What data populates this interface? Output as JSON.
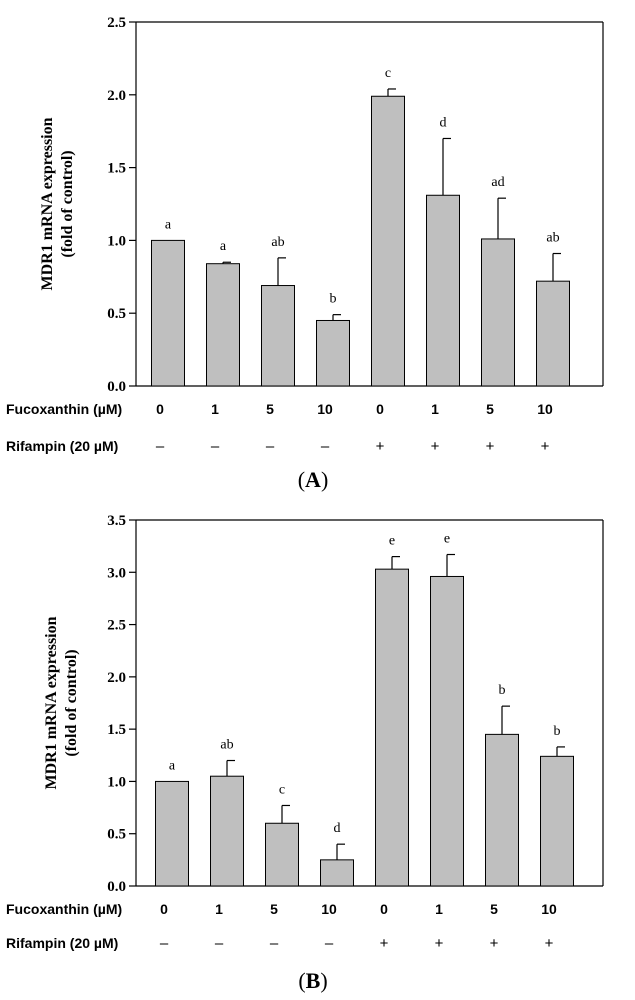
{
  "chart_data": [
    {
      "type": "bar",
      "panel": "A",
      "panel_label": {
        "open": "(",
        "letter": "A",
        "close": ")"
      },
      "ylabel": [
        "MDR1 mRNA expression",
        "(fold of control)"
      ],
      "ylim": [
        0,
        2.5
      ],
      "yticks": [
        "0.0",
        "0.5",
        "1.0",
        "1.5",
        "2.0",
        "2.5"
      ],
      "row_labels": {
        "fucoxanthin": "Fucoxanthin (µM)",
        "rifampin": "Rifampin (20 µM)"
      },
      "fucoxanthin_values": [
        "0",
        "1",
        "5",
        "10",
        "0",
        "1",
        "5",
        "10"
      ],
      "rifampin_values": [
        "–",
        "–",
        "–",
        "–",
        "+",
        "+",
        "+",
        "+"
      ],
      "values": [
        1.0,
        0.84,
        0.69,
        0.45,
        1.99,
        1.31,
        1.01,
        0.72
      ],
      "errors": [
        0.0,
        0.01,
        0.19,
        0.04,
        0.05,
        0.39,
        0.28,
        0.19
      ],
      "letters": [
        "a",
        "a",
        "ab",
        "b",
        "c",
        "d",
        "ad",
        "ab"
      ],
      "bar_color": "#bfbfbf"
    },
    {
      "type": "bar",
      "panel": "B",
      "panel_label": {
        "open": "(",
        "letter": "B",
        "close": ")"
      },
      "ylabel": [
        "MDR1 mRNA expression",
        "(fold of control)"
      ],
      "ylim": [
        0,
        3.5
      ],
      "yticks": [
        "0.0",
        "0.5",
        "1.0",
        "1.5",
        "2.0",
        "2.5",
        "3.0",
        "3.5"
      ],
      "row_labels": {
        "fucoxanthin": "Fucoxanthin (µM)",
        "rifampin": "Rifampin (20 µM)"
      },
      "fucoxanthin_values": [
        "0",
        "1",
        "5",
        "10",
        "0",
        "1",
        "5",
        "10"
      ],
      "rifampin_values": [
        "–",
        "–",
        "–",
        "–",
        "+",
        "+",
        "+",
        "+"
      ],
      "values": [
        1.0,
        1.05,
        0.6,
        0.25,
        3.03,
        2.96,
        1.45,
        1.24
      ],
      "errors": [
        0.0,
        0.15,
        0.17,
        0.15,
        0.12,
        0.21,
        0.27,
        0.09
      ],
      "letters": [
        "a",
        "ab",
        "c",
        "d",
        "e",
        "e",
        "b",
        "b"
      ],
      "bar_color": "#bfbfbf"
    }
  ]
}
